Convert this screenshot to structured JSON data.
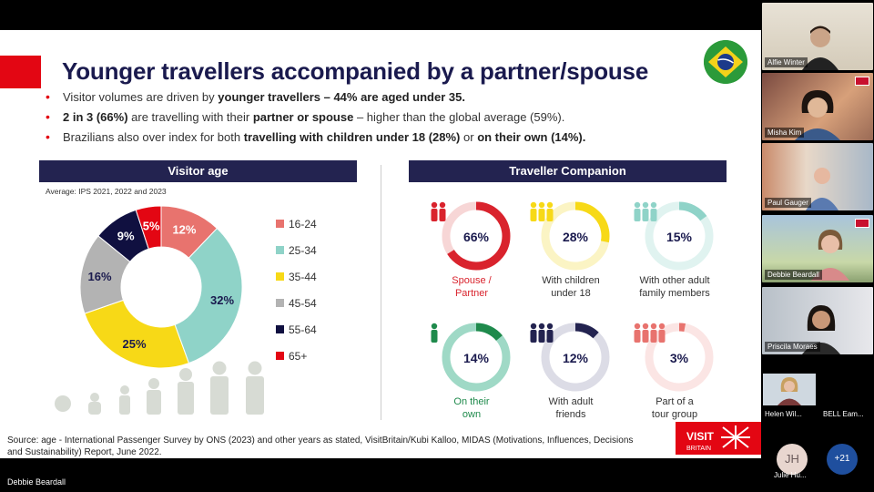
{
  "slide": {
    "title": "Younger travellers accompanied by a partner/spouse",
    "bullets": [
      {
        "pre": "Visitor volumes are driven by ",
        "bold": "younger travellers – 44% are aged under 35.",
        "post": "",
        "bold2": "",
        "post2": ""
      },
      {
        "pre": "",
        "bold": "2 in 3 (66%)",
        "post": " are travelling with their ",
        "bold2": "partner or spouse",
        "post2": " – higher than the global average (59%)."
      },
      {
        "pre": "Brazilians also over index for both ",
        "bold": "travelling with children under 18 (28%)",
        "post": " or ",
        "bold2": "on their own (14%).",
        "post2": ""
      }
    ],
    "visitor_age": {
      "header": "Visitor age",
      "note": "Average: IPS 2021, 2022 and 2023"
    },
    "companion": {
      "header": "Traveller Companion",
      "items": [
        {
          "value": "66%",
          "fraction": 0.66,
          "label": "Spouse /\nPartner",
          "color": "#d9232d",
          "track": "#f7d6d6",
          "label_color": "#d9232d",
          "icon": "couple-icon"
        },
        {
          "value": "28%",
          "fraction": 0.28,
          "label": "With children\nunder 18",
          "color": "#f7d917",
          "track": "#fbf4c4",
          "label_color": "#333333",
          "icon": "family-icon"
        },
        {
          "value": "15%",
          "fraction": 0.15,
          "label": "With other adult\nfamily members",
          "color": "#8fd3c8",
          "track": "#e0f3f0",
          "label_color": "#333333",
          "icon": "adult-family-icon"
        },
        {
          "value": "14%",
          "fraction": 0.14,
          "label": "On their\nown",
          "color": "#1f8a4c",
          "track": "#9fd9c6",
          "label_color": "#1f8a4c",
          "icon": "solo-traveller-icon"
        },
        {
          "value": "12%",
          "fraction": 0.12,
          "label": "With adult\nfriends",
          "color": "#232350",
          "track": "#dcdce6",
          "label_color": "#333333",
          "icon": "friends-icon"
        },
        {
          "value": "3%",
          "fraction": 0.03,
          "label": "Part of a\ntour group",
          "color": "#e8736e",
          "track": "#fbe5e4",
          "label_color": "#333333",
          "icon": "tour-group-icon"
        }
      ]
    },
    "source": "Source: age - International Passenger Survey by ONS (2023) and other years as stated, VisitBritain/Kubi Kalloo, MIDAS (Motivations, Influences, Decisions and Sustainability) Report, June 2022.",
    "logo_text": "VISIT\nBRITAIN"
  },
  "chart_data": {
    "type": "pie",
    "title": "Visitor age",
    "categories": [
      "16-24",
      "25-34",
      "35-44",
      "45-54",
      "55-64",
      "65+"
    ],
    "values": [
      12,
      32,
      25,
      16,
      9,
      5
    ],
    "labels": [
      "12%",
      "32%",
      "25%",
      "16%",
      "9%",
      "5%"
    ],
    "colors": [
      "#e8736e",
      "#8fd3c8",
      "#f7d917",
      "#b3b3b3",
      "#101040",
      "#e30613"
    ],
    "label_colors": [
      "#ffffff",
      "#1a1a4e",
      "#1a1a4e",
      "#1a1a4e",
      "#ffffff",
      "#ffffff"
    ],
    "donut": true,
    "legend": "right"
  },
  "participants": [
    {
      "name": "Alfie Winter"
    },
    {
      "name": "Misha Kim"
    },
    {
      "name": "Paul Gauger"
    },
    {
      "name": "Debbie Beardall"
    },
    {
      "name": "Priscila Moraes"
    },
    {
      "name": "Helen Wil..."
    },
    {
      "name": "BELL Eam..."
    },
    {
      "name": "Julie Hu...",
      "initials": "JH"
    }
  ],
  "more_participants": "+21",
  "active_speaker": "Debbie Beardall"
}
